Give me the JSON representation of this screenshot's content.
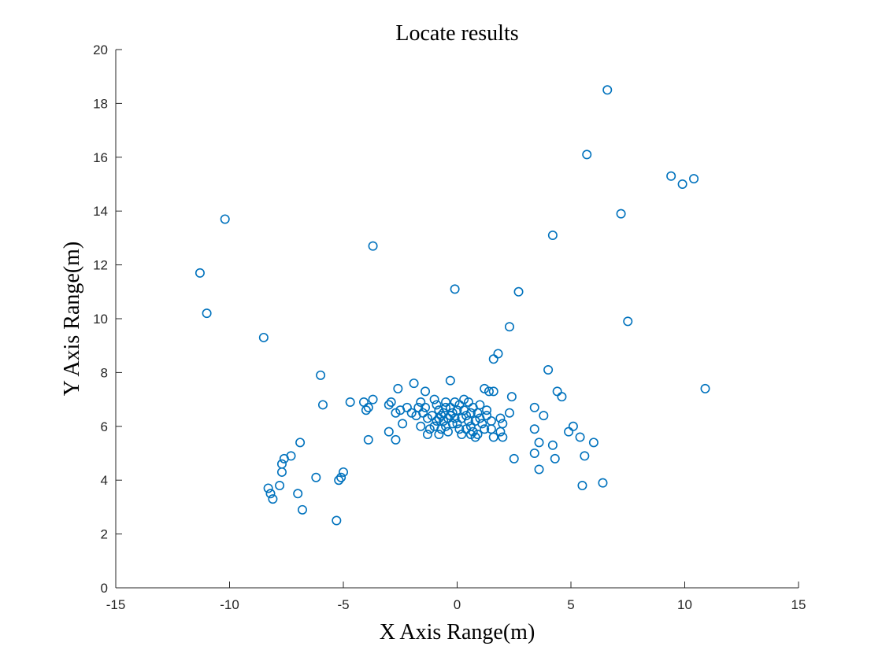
{
  "chart_data": {
    "type": "scatter",
    "title": "Locate results",
    "xlabel": "X Axis Range(m)",
    "ylabel": "Y Axis Range(m)",
    "xlim": [
      -15,
      15
    ],
    "ylim": [
      0,
      20
    ],
    "xticks": [
      "-15",
      "-10",
      "-5",
      "0",
      "5",
      "10",
      "15"
    ],
    "yticks": [
      "0",
      "2",
      "4",
      "6",
      "8",
      "10",
      "12",
      "14",
      "16",
      "18",
      "20"
    ],
    "grid": false,
    "marker": "open-circle",
    "color": "#0072BD",
    "series": [
      {
        "points": [
          [
            6.6,
            18.5
          ],
          [
            5.7,
            16.1
          ],
          [
            9.4,
            15.3
          ],
          [
            9.9,
            15.0
          ],
          [
            10.4,
            15.2
          ],
          [
            7.2,
            13.9
          ],
          [
            4.2,
            13.1
          ],
          [
            -10.2,
            13.7
          ],
          [
            -11.3,
            11.7
          ],
          [
            -11.0,
            10.2
          ],
          [
            -3.7,
            12.7
          ],
          [
            -0.1,
            11.1
          ],
          [
            2.7,
            11.0
          ],
          [
            7.5,
            9.9
          ],
          [
            2.3,
            9.7
          ],
          [
            -8.5,
            9.3
          ],
          [
            1.8,
            8.7
          ],
          [
            1.6,
            8.5
          ],
          [
            4.0,
            8.1
          ],
          [
            -6.0,
            7.9
          ],
          [
            -0.3,
            7.7
          ],
          [
            4.4,
            7.3
          ],
          [
            4.6,
            7.1
          ],
          [
            10.9,
            7.4
          ],
          [
            -2.6,
            7.4
          ],
          [
            -1.9,
            7.6
          ],
          [
            1.2,
            7.4
          ],
          [
            1.4,
            7.3
          ],
          [
            1.6,
            7.3
          ],
          [
            -1.4,
            7.3
          ],
          [
            2.4,
            7.1
          ],
          [
            -5.9,
            6.8
          ],
          [
            -4.7,
            6.9
          ],
          [
            -4.1,
            6.9
          ],
          [
            -3.7,
            7.0
          ],
          [
            -4.0,
            6.6
          ],
          [
            -3.9,
            6.7
          ],
          [
            -2.9,
            6.9
          ],
          [
            -3.0,
            6.8
          ],
          [
            -2.7,
            6.5
          ],
          [
            -2.5,
            6.6
          ],
          [
            -2.2,
            6.7
          ],
          [
            -2.0,
            6.5
          ],
          [
            -1.8,
            6.4
          ],
          [
            -2.4,
            6.1
          ],
          [
            -3.0,
            5.8
          ],
          [
            -2.7,
            5.5
          ],
          [
            -3.9,
            5.5
          ],
          [
            3.4,
            6.7
          ],
          [
            3.8,
            6.4
          ],
          [
            3.4,
            5.9
          ],
          [
            5.1,
            6.0
          ],
          [
            4.9,
            5.8
          ],
          [
            5.4,
            5.6
          ],
          [
            6.0,
            5.4
          ],
          [
            3.6,
            5.4
          ],
          [
            3.4,
            5.0
          ],
          [
            4.2,
            5.3
          ],
          [
            4.3,
            4.8
          ],
          [
            5.6,
            4.9
          ],
          [
            2.5,
            4.8
          ],
          [
            3.6,
            4.4
          ],
          [
            5.5,
            3.8
          ],
          [
            6.4,
            3.9
          ],
          [
            2.3,
            6.5
          ],
          [
            2.0,
            6.1
          ],
          [
            1.9,
            5.8
          ],
          [
            2.0,
            5.6
          ],
          [
            1.6,
            5.6
          ],
          [
            1.9,
            6.3
          ],
          [
            -1.6,
            6.9
          ],
          [
            -1.4,
            6.7
          ],
          [
            -1.5,
            6.5
          ],
          [
            -1.3,
            6.3
          ],
          [
            -1.6,
            6.0
          ],
          [
            -1.2,
            5.9
          ],
          [
            -1.3,
            5.7
          ],
          [
            -1.0,
            7.0
          ],
          [
            -0.9,
            6.8
          ],
          [
            -0.8,
            6.6
          ],
          [
            -0.7,
            6.4
          ],
          [
            -0.6,
            6.2
          ],
          [
            -0.5,
            6.0
          ],
          [
            -0.4,
            5.8
          ],
          [
            -0.8,
            5.7
          ],
          [
            -0.5,
            6.9
          ],
          [
            -0.3,
            6.7
          ],
          [
            -0.2,
            6.5
          ],
          [
            -0.1,
            6.3
          ],
          [
            0.0,
            6.1
          ],
          [
            0.1,
            5.9
          ],
          [
            0.2,
            5.7
          ],
          [
            -0.6,
            6.5
          ],
          [
            -0.4,
            6.3
          ],
          [
            -0.2,
            6.1
          ],
          [
            0.1,
            6.8
          ],
          [
            0.3,
            6.6
          ],
          [
            0.4,
            6.4
          ],
          [
            0.5,
            6.2
          ],
          [
            0.6,
            6.0
          ],
          [
            0.7,
            5.8
          ],
          [
            0.8,
            5.6
          ],
          [
            0.3,
            7.0
          ],
          [
            0.5,
            6.9
          ],
          [
            0.7,
            6.7
          ],
          [
            0.9,
            6.5
          ],
          [
            1.0,
            6.3
          ],
          [
            1.1,
            6.1
          ],
          [
            1.2,
            5.9
          ],
          [
            0.9,
            5.7
          ],
          [
            1.0,
            6.8
          ],
          [
            1.3,
            6.6
          ],
          [
            1.5,
            6.2
          ],
          [
            1.5,
            5.9
          ],
          [
            0.6,
            6.5
          ],
          [
            -1.1,
            6.4
          ],
          [
            -0.9,
            6.2
          ],
          [
            -1.0,
            6.0
          ],
          [
            -0.7,
            5.9
          ],
          [
            -0.3,
            6.4
          ],
          [
            0.2,
            6.3
          ],
          [
            0.0,
            6.6
          ],
          [
            -0.1,
            6.9
          ],
          [
            0.4,
            5.9
          ],
          [
            0.6,
            5.7
          ],
          [
            1.3,
            6.4
          ],
          [
            -1.7,
            6.7
          ],
          [
            0.8,
            6.2
          ],
          [
            -0.8,
            6.3
          ],
          [
            -0.5,
            6.7
          ],
          [
            -6.9,
            5.4
          ],
          [
            -7.3,
            4.9
          ],
          [
            -7.6,
            4.8
          ],
          [
            -7.7,
            4.6
          ],
          [
            -7.7,
            4.3
          ],
          [
            -7.8,
            3.8
          ],
          [
            -6.2,
            4.1
          ],
          [
            -8.3,
            3.7
          ],
          [
            -8.2,
            3.5
          ],
          [
            -8.1,
            3.3
          ],
          [
            -7.0,
            3.5
          ],
          [
            -6.8,
            2.9
          ],
          [
            -5.0,
            4.3
          ],
          [
            -5.1,
            4.1
          ],
          [
            -5.2,
            4.0
          ],
          [
            -5.3,
            2.5
          ]
        ]
      }
    ]
  }
}
